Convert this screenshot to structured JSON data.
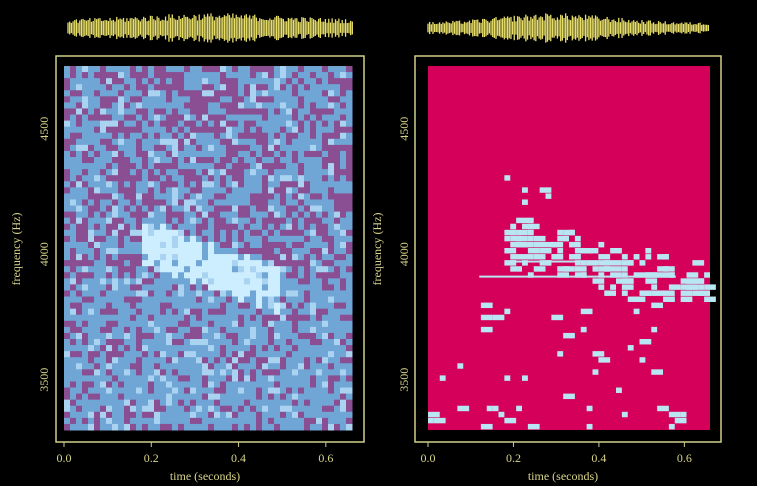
{
  "chart_data": [
    {
      "type": "heatmap",
      "panel": "left",
      "xlabel": "time (seconds)",
      "ylabel": "frequency (Hz)",
      "xlim": [
        0.0,
        0.66
      ],
      "ylim": [
        3300,
        4750
      ],
      "x_ticks": [
        "0.0",
        "0.2",
        "0.4",
        "0.6"
      ],
      "x_tick_values": [
        0.0,
        0.2,
        0.4,
        0.6
      ],
      "y_ticks": [
        "3500",
        "4000",
        "4500"
      ],
      "y_tick_values": [
        3500,
        4000,
        4500
      ],
      "colormap": "magenta-to-cyan noise field with bright diagonal band",
      "bright_band": {
        "t_start": 0.18,
        "t_end": 0.5,
        "f_start": 4050,
        "f_end": 3850
      },
      "waveform": "top"
    },
    {
      "type": "heatmap",
      "panel": "right",
      "xlabel": "time (seconds)",
      "ylabel": "frequency (Hz)",
      "xlim": [
        0.0,
        0.66
      ],
      "ylim": [
        3300,
        4750
      ],
      "x_ticks": [
        "0.0",
        "0.2",
        "0.4",
        "0.6"
      ],
      "x_tick_values": [
        0.0,
        0.2,
        0.4,
        0.6
      ],
      "y_ticks": [
        "3500",
        "4000",
        "4500"
      ],
      "y_tick_values": [
        3500,
        4000,
        4500
      ],
      "colormap": "binary thresholded mask (cyan on magenta)",
      "bright_band": {
        "t_start": 0.18,
        "t_end": 0.66,
        "f_start": 4050,
        "f_end": 3850
      },
      "waveform": "top"
    }
  ],
  "colors": {
    "background": "#000000",
    "frame": "#cfcf8a",
    "axis_text": "#d8d48a",
    "waveform": "#e8df6a",
    "left_low": "#8a4f92",
    "left_mid": "#6fa6d6",
    "left_high": "#cdeefe",
    "right_bg": "#d4005a",
    "right_mask": "#b9e6f3"
  }
}
